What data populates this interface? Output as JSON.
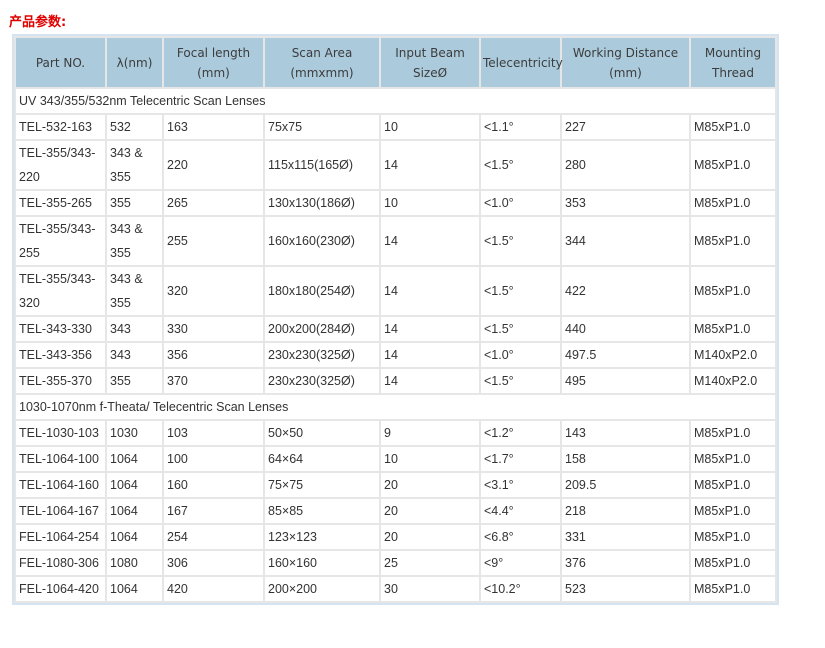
{
  "page_title": "产品参数:",
  "columns": [
    "Part NO.",
    "λ(nm)",
    "Focal length (mm)",
    "Scan Area (mmxmm)",
    "Input Beam SizeØ",
    "Telecentricity",
    "Working Distance (mm)",
    "Mounting Thread"
  ],
  "sections": [
    {
      "title": "UV 343/355/532nm Telecentric Scan Lenses",
      "rows": [
        [
          "TEL-532-163",
          "532",
          "163",
          "75x75",
          "10",
          "<1.1°",
          "227",
          "M85xP1.0"
        ],
        [
          "TEL-355/343-220",
          "343 & 355",
          "220",
          "115x115(165Ø)",
          "14",
          "<1.5°",
          "280",
          "M85xP1.0"
        ],
        [
          "TEL-355-265",
          "355",
          "265",
          "130x130(186Ø)",
          "10",
          "<1.0°",
          "353",
          "M85xP1.0"
        ],
        [
          "TEL-355/343-255",
          "343 & 355",
          "255",
          "160x160(230Ø)",
          "14",
          "<1.5°",
          "344",
          "M85xP1.0"
        ],
        [
          "TEL-355/343-320",
          "343 & 355",
          "320",
          "180x180(254Ø)",
          "14",
          "<1.5°",
          "422",
          "M85xP1.0"
        ],
        [
          "TEL-343-330",
          "343",
          "330",
          "200x200(284Ø)",
          "14",
          "<1.5°",
          "440",
          "M85xP1.0"
        ],
        [
          "TEL-343-356",
          "343",
          "356",
          "230x230(325Ø)",
          "14",
          "<1.0°",
          "497.5",
          "M140xP2.0"
        ],
        [
          "TEL-355-370",
          "355",
          "370",
          "230x230(325Ø)",
          "14",
          "<1.5°",
          "495",
          "M140xP2.0"
        ]
      ]
    },
    {
      "title": "1030-1070nm f-Theata/ Telecentric Scan Lenses",
      "rows": [
        [
          "TEL-1030-103",
          "1030",
          "103",
          "50×50",
          "9",
          "<1.2°",
          "143",
          "M85xP1.0"
        ],
        [
          "TEL-1064-100",
          "1064",
          "100",
          "64×64",
          "10",
          "<1.7°",
          "158",
          "M85xP1.0"
        ],
        [
          "TEL-1064-160",
          "1064",
          "160",
          "75×75",
          "20",
          "<3.1°",
          "209.5",
          "M85xP1.0"
        ],
        [
          "TEL-1064-167",
          "1064",
          "167",
          "85×85",
          "20",
          "<4.4°",
          "218",
          "M85xP1.0"
        ],
        [
          "FEL-1064-254",
          "1064",
          "254",
          "123×123",
          "20",
          "<6.8°",
          "331",
          "M85xP1.0"
        ],
        [
          "FEL-1080-306",
          "1080",
          "306",
          "160×160",
          "25",
          "<9°",
          "376",
          "M85xP1.0"
        ],
        [
          "FEL-1064-420",
          "1064",
          "420",
          "200×200",
          "30",
          "<10.2°",
          "523",
          "M85xP1.0"
        ]
      ]
    }
  ]
}
